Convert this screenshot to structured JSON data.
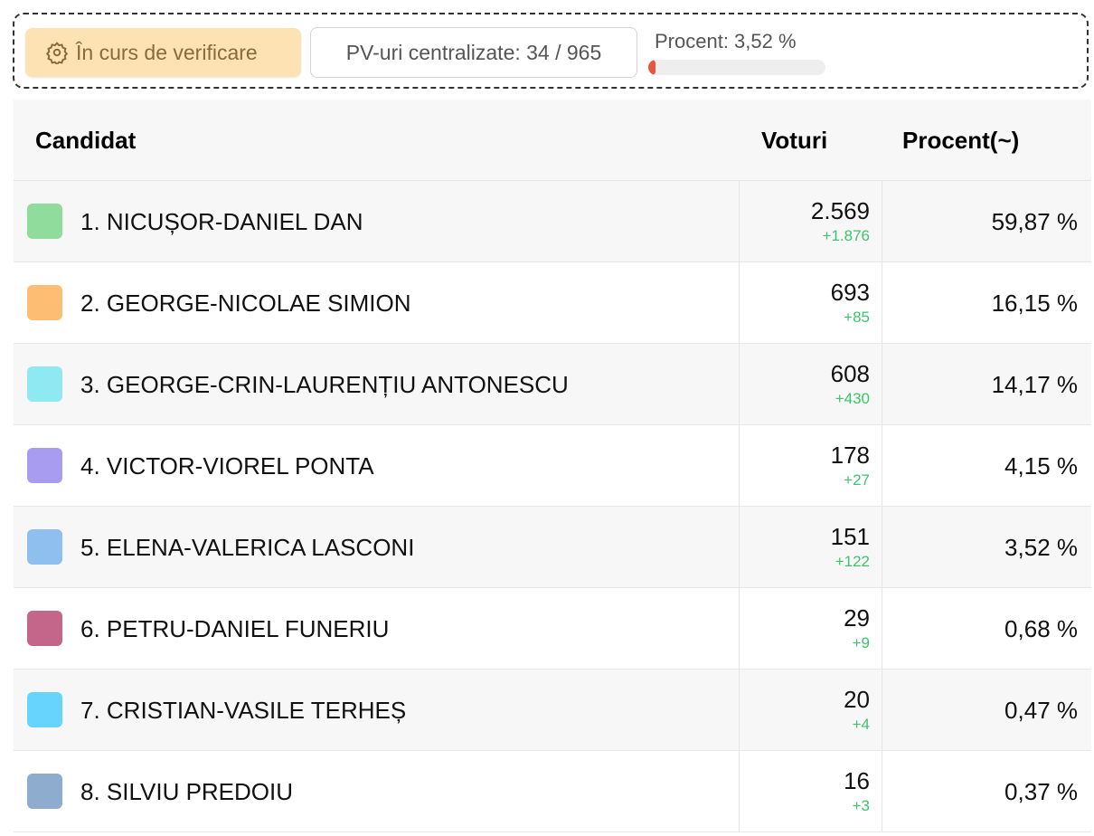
{
  "status": {
    "badge": "În curs de verificare",
    "pv": "PV-uri centralizate: 34 / 965",
    "percent": "Procent: 3,52 %"
  },
  "table": {
    "headers": [
      "Candidat",
      "Voturi",
      "Procent(~)"
    ],
    "rows": [
      {
        "name": "1. NICUȘOR-DANIEL DAN",
        "votes": "2.569",
        "delta": "+1.876",
        "percent": "59,87 %",
        "color": "#8fdc9c"
      },
      {
        "name": "2. GEORGE-NICOLAE SIMION",
        "votes": "693",
        "delta": "+85",
        "percent": "16,15 %",
        "color": "#fdbd72"
      },
      {
        "name": "3. GEORGE-CRIN-LAURENȚIU ANTONESCU",
        "votes": "608",
        "delta": "+430",
        "percent": "14,17 %",
        "color": "#8ee9f2"
      },
      {
        "name": "4. VICTOR-VIOREL PONTA",
        "votes": "178",
        "delta": "+27",
        "percent": "4,15 %",
        "color": "#a89cf0"
      },
      {
        "name": "5. ELENA-VALERICA LASCONI",
        "votes": "151",
        "delta": "+122",
        "percent": "3,52 %",
        "color": "#8fbfee"
      },
      {
        "name": "6. PETRU-DANIEL FUNERIU",
        "votes": "29",
        "delta": "+9",
        "percent": "0,68 %",
        "color": "#c4668a"
      },
      {
        "name": "7. CRISTIAN-VASILE TERHEȘ",
        "votes": "20",
        "delta": "+4",
        "percent": "0,47 %",
        "color": "#66d4fc"
      },
      {
        "name": "8. SILVIU PREDOIU",
        "votes": "16",
        "delta": "+3",
        "percent": "0,37 %",
        "color": "#8eaccd"
      }
    ]
  }
}
